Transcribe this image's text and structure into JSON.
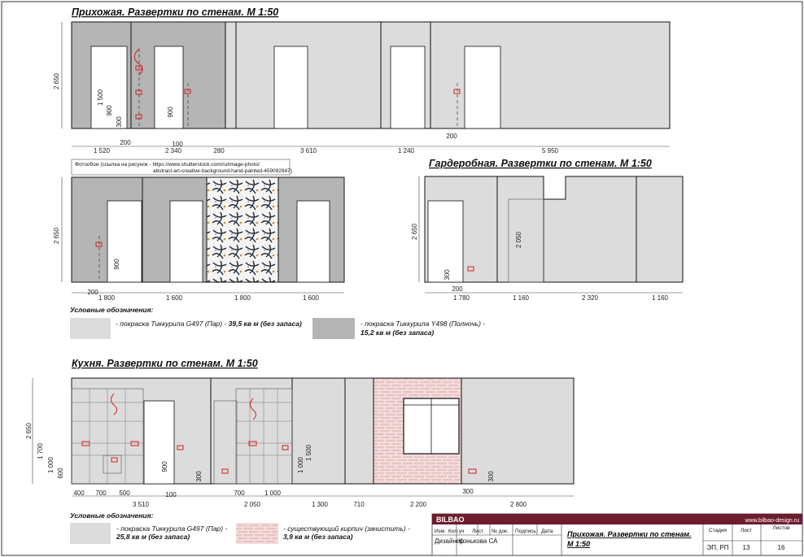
{
  "sections": {
    "hallway_title": "Прихожая. Развертки по стенам. М 1:50",
    "wardrobe_title": "Гардеробная. Развертки по стенам. М 1:50",
    "kitchen_title": "Кухня. Развертки по стенам. М 1:50"
  },
  "photo_note": {
    "line1": "Фотообои (ссылка на рисунок - https://www.shutterstock.com/ru/image-photo/",
    "line2": "abstract-art-creative-background-hand-painted-459092947)"
  },
  "hallway_dims": {
    "height": "2 650",
    "row1": [
      "1 520",
      "2 340",
      "280",
      "3 610",
      "1 240",
      "5 950"
    ],
    "row1_small": [
      "200",
      "100",
      "200"
    ],
    "row1_vert": [
      "1 500",
      "900",
      "300",
      "900"
    ],
    "row2_height": "2 650",
    "row2": [
      "1 800",
      "1 600",
      "1 800",
      "1 600"
    ],
    "row2_small": "200",
    "row2_vert": "900"
  },
  "wardrobe_dims": {
    "height": "2 650",
    "door_height": "2 050",
    "bottom": [
      "1 780",
      "1 160",
      "2 320",
      "1 160"
    ],
    "small": [
      "300",
      "200"
    ]
  },
  "kitchen_dims": {
    "height": "2 650",
    "heights": [
      "1 700",
      "1 000",
      "600"
    ],
    "wall_height2": "1 000",
    "tile_height": "1 500",
    "row_small": [
      "400",
      "700",
      "500",
      "100",
      "700",
      "1 000",
      "300"
    ],
    "row_main": [
      "3 510",
      "2 050",
      "1 300",
      "710",
      "2 200",
      "2 800"
    ],
    "vert": [
      "900",
      "300",
      "300"
    ]
  },
  "legend1": {
    "title": "Условные обозначения:",
    "item1_text": "- покраска Тиккурила G497 (Пар) - ",
    "item1_bold": "39,5 кв м (без запаса)",
    "item2_text": "- покраска Тиккурила Y498 (Полночь) -",
    "item2_bold": "15,2 кв м (без запаса)"
  },
  "legend2": {
    "title": "Условные обозначения:",
    "item1_text": "- покраска Тиккурила G497 (Пар) -",
    "item1_bold": "25,8 кв м (без запаса)",
    "item2_text": "- существующий кирпич (зачистить) -",
    "item2_bold": "3,9 кв м (без запаса)"
  },
  "title_block": {
    "brand": "BILBAO",
    "site": "www.bilbao-design.ru",
    "headers": [
      "Изм.",
      "Кол.уч",
      "Лист",
      "№ док.",
      "Подпись",
      "Дата"
    ],
    "role": "Дизайнер",
    "name": "Конькова СА",
    "sheet_title_1": "Прихожая. Развертки по стенам.",
    "sheet_title_2": "М 1:50",
    "stage_label": "Стадия",
    "sheet_label": "Лист",
    "sheets_label": "Листов",
    "stage": "ЭП, РП",
    "sheet": "13",
    "sheets": "16"
  },
  "colors": {
    "light_paint": "#dcdcdc",
    "dark_paint": "#b5b5b5",
    "brick": "#e9c3c3",
    "brand_bar": "#6e1d2e",
    "outlet": "#d22020"
  }
}
